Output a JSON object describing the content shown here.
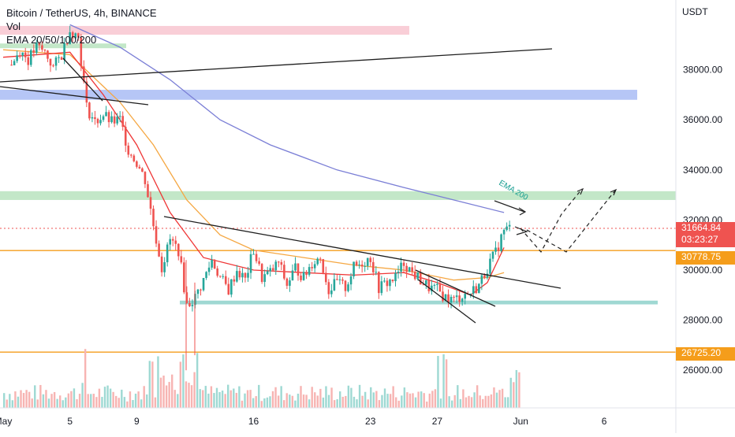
{
  "legend": {
    "symbol": "Bitcoin / TetherUS, 4h, BINANCE",
    "vol": "Vol",
    "ema": "EMA 20/50/100/200"
  },
  "currency": "USDT",
  "tags": {
    "last_price": "31664.84",
    "countdown": "03:23:27",
    "support_level": "30778.75",
    "lower_level": "26725.20"
  },
  "annotation": "EMA 200",
  "colors": {
    "up": "#26a69a",
    "down": "#ef5350",
    "ema20": "#ef3535",
    "ema50": "#f5a742",
    "ema200": "#7b7fd6",
    "orange_line": "#f59d1b",
    "zone_pink": "#f8c6d0",
    "zone_blue": "#a9bcf5",
    "zone_green": "#b9e3be",
    "zone_teal": "#9fd8d2"
  },
  "chart_data": {
    "type": "candlestick",
    "title": "Bitcoin / TetherUS, 4h, BINANCE",
    "y_axis": {
      "ticks": [
        "38000.00",
        "36000.00",
        "34000.00",
        "32000.00",
        "30000.00",
        "28000.00",
        "26000.00"
      ],
      "range": [
        24000,
        40500
      ]
    },
    "x_axis": {
      "ticks": [
        "May",
        "5",
        "9",
        "16",
        "23",
        "27",
        "Jun",
        "6"
      ]
    },
    "close_path": [
      {
        "x": "May 1 12:00",
        "y": 38200
      },
      {
        "x": "May 2 00:00",
        "y": 38800
      },
      {
        "x": "May 2 12:00",
        "y": 38400
      },
      {
        "x": "May 3 00:00",
        "y": 38900
      },
      {
        "x": "May 3 12:00",
        "y": 38700
      },
      {
        "x": "May 4 00:00",
        "y": 38100
      },
      {
        "x": "May 4 12:00",
        "y": 38600
      },
      {
        "x": "May 5 00:00",
        "y": 39600
      },
      {
        "x": "May 5 12:00",
        "y": 39300
      },
      {
        "x": "May 6 00:00",
        "y": 36500
      },
      {
        "x": "May 6 12:00",
        "y": 35900
      },
      {
        "x": "May 7 00:00",
        "y": 36200
      },
      {
        "x": "May 7 12:00",
        "y": 35900
      },
      {
        "x": "May 8 00:00",
        "y": 36000
      },
      {
        "x": "May 8 12:00",
        "y": 34800
      },
      {
        "x": "May 9 00:00",
        "y": 34300
      },
      {
        "x": "May 9 12:00",
        "y": 33600
      },
      {
        "x": "May 10 00:00",
        "y": 31800
      },
      {
        "x": "May 10 12:00",
        "y": 30100
      },
      {
        "x": "May 11 00:00",
        "y": 31200
      },
      {
        "x": "May 11 12:00",
        "y": 30800
      },
      {
        "x": "May 12 00:00",
        "y": 28600
      },
      {
        "x": "May 12 12:00",
        "y": 28900
      },
      {
        "x": "May 13 00:00",
        "y": 29600
      },
      {
        "x": "May 13 12:00",
        "y": 30400
      },
      {
        "x": "May 14 00:00",
        "y": 29700
      },
      {
        "x": "May 14 12:00",
        "y": 29200
      },
      {
        "x": "May 15 00:00",
        "y": 30000
      },
      {
        "x": "May 15 12:00",
        "y": 29600
      },
      {
        "x": "May 16 00:00",
        "y": 30800
      },
      {
        "x": "May 16 12:00",
        "y": 29700
      },
      {
        "x": "May 17 00:00",
        "y": 29900
      },
      {
        "x": "May 17 12:00",
        "y": 30300
      },
      {
        "x": "May 18 00:00",
        "y": 29400
      },
      {
        "x": "May 18 12:00",
        "y": 30100
      },
      {
        "x": "May 19 00:00",
        "y": 29700
      },
      {
        "x": "May 19 12:00",
        "y": 30300
      },
      {
        "x": "May 20 00:00",
        "y": 30500
      },
      {
        "x": "May 20 12:00",
        "y": 29200
      },
      {
        "x": "May 21 00:00",
        "y": 29500
      },
      {
        "x": "May 21 12:00",
        "y": 29300
      },
      {
        "x": "May 22 00:00",
        "y": 30100
      },
      {
        "x": "May 22 12:00",
        "y": 30300
      },
      {
        "x": "May 23 00:00",
        "y": 30500
      },
      {
        "x": "May 23 12:00",
        "y": 29300
      },
      {
        "x": "May 24 00:00",
        "y": 29500
      },
      {
        "x": "May 24 12:00",
        "y": 29700
      },
      {
        "x": "May 25 00:00",
        "y": 30300
      },
      {
        "x": "May 25 12:00",
        "y": 29900
      },
      {
        "x": "May 26 00:00",
        "y": 29600
      },
      {
        "x": "May 26 12:00",
        "y": 29300
      },
      {
        "x": "May 27 00:00",
        "y": 29200
      },
      {
        "x": "May 27 12:00",
        "y": 28900
      },
      {
        "x": "May 28 00:00",
        "y": 28800
      },
      {
        "x": "May 28 12:00",
        "y": 29000
      },
      {
        "x": "May 29 00:00",
        "y": 29100
      },
      {
        "x": "May 29 12:00",
        "y": 29400
      },
      {
        "x": "May 30 00:00",
        "y": 30100
      },
      {
        "x": "May 30 12:00",
        "y": 30700
      },
      {
        "x": "May 31 00:00",
        "y": 31600
      },
      {
        "x": "May 31 08:00",
        "y": 31665
      }
    ],
    "series": [
      {
        "name": "EMA 200",
        "points": [
          {
            "x": "May 5 00:00",
            "y": 39800
          },
          {
            "x": "May 8 00:00",
            "y": 38900
          },
          {
            "x": "May 11 00:00",
            "y": 37600
          },
          {
            "x": "May 14 00:00",
            "y": 36000
          },
          {
            "x": "May 17 00:00",
            "y": 35000
          },
          {
            "x": "May 21 00:00",
            "y": 34000
          },
          {
            "x": "May 25 00:00",
            "y": 33300
          },
          {
            "x": "May 28 00:00",
            "y": 32800
          },
          {
            "x": "May 31 00:00",
            "y": 32300
          }
        ]
      },
      {
        "name": "EMA 50",
        "points": [
          {
            "x": "May 1 00:00",
            "y": 38800
          },
          {
            "x": "May 5 00:00",
            "y": 38600
          },
          {
            "x": "May 8 00:00",
            "y": 36700
          },
          {
            "x": "May 10 00:00",
            "y": 35000
          },
          {
            "x": "May 12 00:00",
            "y": 32800
          },
          {
            "x": "May 14 00:00",
            "y": 31400
          },
          {
            "x": "May 16 00:00",
            "y": 30800
          },
          {
            "x": "May 19 00:00",
            "y": 30500
          },
          {
            "x": "May 22 00:00",
            "y": 30200
          },
          {
            "x": "May 25 00:00",
            "y": 30000
          },
          {
            "x": "May 28 00:00",
            "y": 29600
          },
          {
            "x": "May 30 00:00",
            "y": 29700
          },
          {
            "x": "May 31 00:00",
            "y": 29900
          }
        ]
      },
      {
        "name": "EMA 20",
        "points": [
          {
            "x": "May 1 00:00",
            "y": 38500
          },
          {
            "x": "May 5 00:00",
            "y": 38700
          },
          {
            "x": "May 7 00:00",
            "y": 37000
          },
          {
            "x": "May 9 00:00",
            "y": 35000
          },
          {
            "x": "May 11 00:00",
            "y": 32300
          },
          {
            "x": "May 13 00:00",
            "y": 30500
          },
          {
            "x": "May 16 00:00",
            "y": 30000
          },
          {
            "x": "May 19 00:00",
            "y": 29900
          },
          {
            "x": "May 22 00:00",
            "y": 29800
          },
          {
            "x": "May 25 00:00",
            "y": 29900
          },
          {
            "x": "May 27 00:00",
            "y": 29500
          },
          {
            "x": "May 29 00:00",
            "y": 29000
          },
          {
            "x": "May 30 00:00",
            "y": 29500
          },
          {
            "x": "May 31 00:00",
            "y": 30900
          }
        ]
      }
    ],
    "horizontal_levels": [
      30778.75,
      26725.2
    ],
    "last_price": 31664.84
  }
}
